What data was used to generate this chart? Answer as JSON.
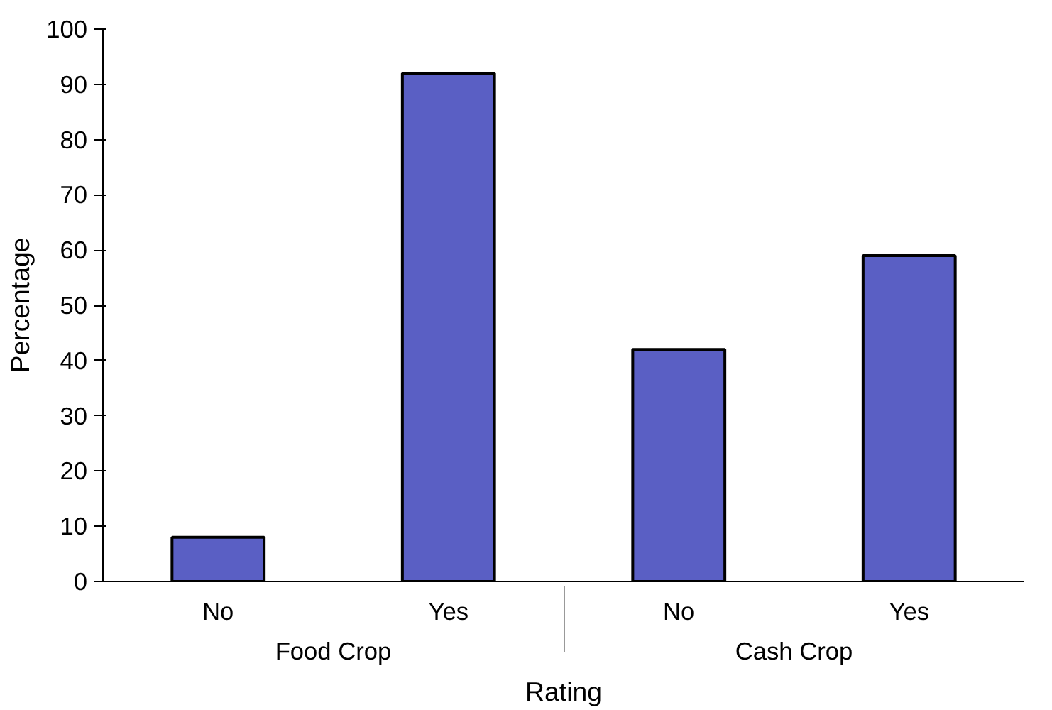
{
  "chart_data": {
    "type": "bar",
    "xlabel": "Rating",
    "ylabel": "Percentage",
    "categories": [
      "No",
      "Yes",
      "No",
      "Yes"
    ],
    "annotations": [
      "Food Crop",
      "Cash Crop"
    ],
    "values": [
      8,
      92,
      42,
      59
    ],
    "color": "#5a5fc4",
    "ylim": [
      0,
      100
    ],
    "yticks": [
      0,
      10,
      20,
      30,
      40,
      50,
      60,
      70,
      80,
      90,
      100
    ],
    "grid": false
  }
}
